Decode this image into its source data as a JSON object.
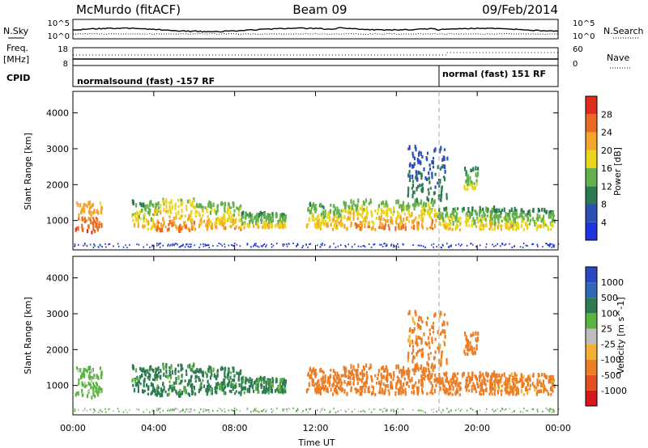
{
  "chart_data": {
    "type": "heatmap",
    "header": {
      "station": "McMurdo (fitACF)",
      "beam": "Beam 09",
      "date": "09/Feb/2014"
    },
    "summary_panel": {
      "left_label_top": "N.Sky",
      "left_label_freq_1": "Freq.",
      "left_label_freq_2": "[MHz]",
      "left_label_cpid": "CPID",
      "right_label_top": "N.Search",
      "right_label_nave": "Nave",
      "nsky_ticks": [
        "10^5",
        "10^0"
      ],
      "nsearch_ticks": [
        "10^5",
        "10^0"
      ],
      "freq_ticks": [
        "18",
        "8"
      ],
      "nave_ticks": [
        "60",
        "0"
      ],
      "cpid_segments": [
        {
          "label": "normalsound (fast) -157 RF",
          "start": 0,
          "end": 18
        },
        {
          "label": "normal (fast) 151 RF",
          "start": 18,
          "end": 24
        }
      ]
    },
    "x_axis": {
      "label": "Time UT",
      "range_hours": [
        0,
        24
      ],
      "ticks": [
        0,
        4,
        8,
        12,
        16,
        20,
        24
      ],
      "tick_labels": [
        "00:00",
        "04:00",
        "08:00",
        "12:00",
        "16:00",
        "20:00",
        "00:00"
      ]
    },
    "y_axis": {
      "label": "Slant Range [km]",
      "range_km": [
        180,
        4600
      ],
      "ticks": [
        1000,
        2000,
        3000,
        4000
      ],
      "tick_labels": [
        "1000",
        "2000",
        "3000",
        "4000"
      ]
    },
    "power_colorbar": {
      "label": "Power [dB]",
      "ticks": [
        "4",
        "8",
        "12",
        "16",
        "20",
        "24",
        "28"
      ],
      "colors": [
        "#1f33e0",
        "#2b4fb7",
        "#2c7a50",
        "#62b14a",
        "#e9d51b",
        "#f4a52a",
        "#ea6a21",
        "#e02d1f"
      ]
    },
    "velocity_colorbar": {
      "label": "Velocity [m s^-1]",
      "ticks": [
        "1000",
        "500",
        "100",
        "25",
        "-25",
        "-100",
        "-500",
        "-1000"
      ],
      "colors": [
        "#2d46c2",
        "#3168b7",
        "#2e7a52",
        "#5ab442",
        "#bdbdbd",
        "#f3b133",
        "#ec7d25",
        "#e4501f",
        "#d8161b"
      ]
    },
    "scatter_regions": [
      {
        "t0": 0.1,
        "t1": 1.4,
        "r0": 600,
        "r1": 1450,
        "pmin": 18,
        "pmax": 30,
        "vel": 40
      },
      {
        "t0": 2.9,
        "t1": 4.2,
        "r0": 700,
        "r1": 1500,
        "pmin": 8,
        "pmax": 24,
        "vel": 150
      },
      {
        "t0": 4.0,
        "t1": 6.0,
        "r0": 650,
        "r1": 1550,
        "pmin": 12,
        "pmax": 28,
        "vel": 150
      },
      {
        "t0": 6.0,
        "t1": 8.3,
        "r0": 700,
        "r1": 1450,
        "pmin": 10,
        "pmax": 26,
        "vel": 150
      },
      {
        "t0": 8.3,
        "t1": 10.5,
        "r0": 750,
        "r1": 1150,
        "pmin": 8,
        "pmax": 22,
        "vel": 120
      },
      {
        "t0": 11.5,
        "t1": 13.3,
        "r0": 700,
        "r1": 1400,
        "pmin": 8,
        "pmax": 26,
        "vel": -300
      },
      {
        "t0": 13.3,
        "t1": 15.5,
        "r0": 700,
        "r1": 1500,
        "pmin": 10,
        "pmax": 28,
        "vel": -300
      },
      {
        "t0": 15.5,
        "t1": 18.0,
        "r0": 700,
        "r1": 1500,
        "pmin": 10,
        "pmax": 28,
        "vel": -300
      },
      {
        "t0": 18.0,
        "t1": 20.8,
        "r0": 700,
        "r1": 1300,
        "pmin": 8,
        "pmax": 24,
        "vel": -200
      },
      {
        "t0": 20.8,
        "t1": 23.8,
        "r0": 700,
        "r1": 1250,
        "pmin": 8,
        "pmax": 22,
        "vel": -150
      },
      {
        "t0": 19.3,
        "t1": 20.0,
        "r0": 1800,
        "r1": 2400,
        "pmin": 8,
        "pmax": 20,
        "vel": -300
      },
      {
        "t0": 16.5,
        "t1": 18.5,
        "r0": 1500,
        "r1": 3000,
        "pmin": 4,
        "pmax": 12,
        "vel": -150
      }
    ]
  }
}
